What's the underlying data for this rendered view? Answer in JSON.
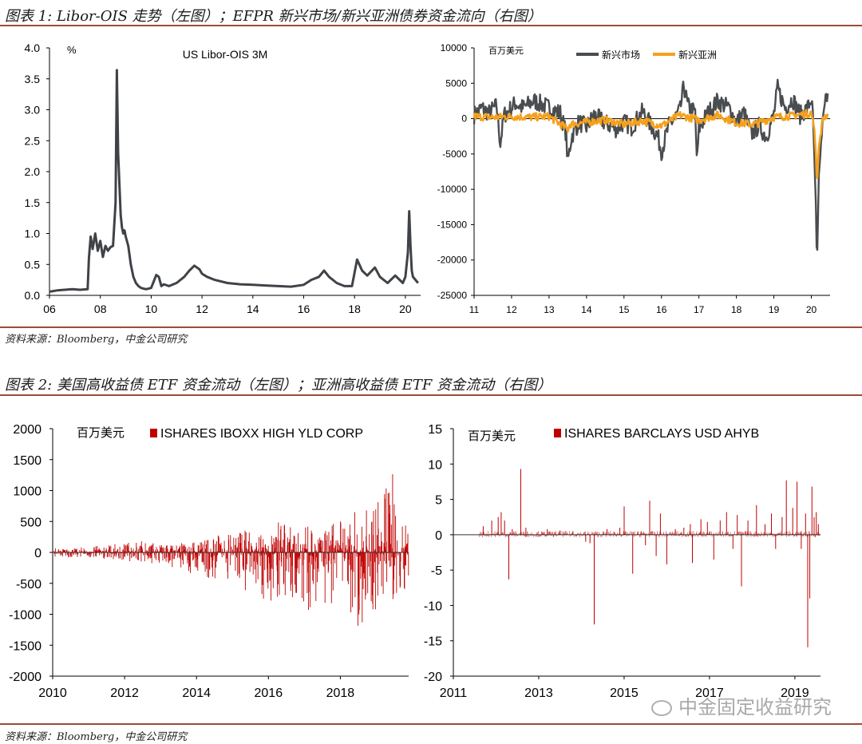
{
  "figure1": {
    "title": "图表 1: Libor-OIS 走势（左图）；EFPR 新兴市场/新兴亚洲债券资金流向（右图）",
    "source": "资料来源：Bloomberg，中金公司研究"
  },
  "figure2": {
    "title": "图表 2: 美国高收益债 ETF 资金流动（左图）；亚洲高收益债 ETF 资金流动（右图）",
    "source": "资料来源：Bloomberg，中金公司研究"
  },
  "watermark": "中金固定收益研究",
  "colors": {
    "rule": "#9b4a3a",
    "libor": "#3f4347",
    "em": "#4a4d50",
    "asia": "#f5a11d",
    "etf": "#c00000"
  },
  "chart_data": [
    {
      "id": "libor",
      "type": "line",
      "title": "US Libor-OIS 3M",
      "ylabel": "%",
      "ylim": [
        0,
        4
      ],
      "yticks": [
        "0.0",
        "0.5",
        "1.0",
        "1.5",
        "2.0",
        "2.5",
        "3.0",
        "3.5",
        "4.0"
      ],
      "xlim": [
        2006,
        2020.6
      ],
      "xticks": [
        {
          "v": 2006,
          "l": "06"
        },
        {
          "v": 2008,
          "l": "08"
        },
        {
          "v": 2010,
          "l": "10"
        },
        {
          "v": 2012,
          "l": "12"
        },
        {
          "v": 2014,
          "l": "14"
        },
        {
          "v": 2016,
          "l": "16"
        },
        {
          "v": 2018,
          "l": "18"
        },
        {
          "v": 2020,
          "l": "20"
        }
      ],
      "series": [
        {
          "x": [
            2006,
            2006.3,
            2006.6,
            2006.9,
            2007.2,
            2007.5,
            2007.55,
            2007.62,
            2007.7,
            2007.8,
            2007.9,
            2008.0,
            2008.1,
            2008.2,
            2008.3,
            2008.4,
            2008.5,
            2008.6,
            2008.65,
            2008.7,
            2008.75,
            2008.8,
            2008.85,
            2008.9,
            2008.95,
            2009.0,
            2009.1,
            2009.2,
            2009.3,
            2009.4,
            2009.5,
            2009.6,
            2009.8,
            2010.0,
            2010.2,
            2010.3,
            2010.4,
            2010.5,
            2010.7,
            2011.0,
            2011.3,
            2011.5,
            2011.7,
            2011.9,
            2012.0,
            2012.2,
            2012.5,
            2013.0,
            2013.5,
            2014.0,
            2014.5,
            2015.0,
            2015.5,
            2016.0,
            2016.3,
            2016.6,
            2016.8,
            2017.0,
            2017.3,
            2017.6,
            2017.9,
            2018.1,
            2018.3,
            2018.5,
            2018.8,
            2019.0,
            2019.3,
            2019.6,
            2019.9,
            2020.0,
            2020.1,
            2020.15,
            2020.2,
            2020.25,
            2020.3,
            2020.4,
            2020.5
          ],
          "y": [
            0.06,
            0.08,
            0.09,
            0.1,
            0.09,
            0.1,
            0.6,
            0.95,
            0.75,
            1.0,
            0.72,
            0.88,
            0.62,
            0.8,
            0.72,
            0.78,
            0.8,
            1.5,
            3.64,
            2.3,
            1.8,
            1.3,
            1.1,
            1.0,
            1.05,
            0.95,
            0.8,
            0.5,
            0.3,
            0.2,
            0.15,
            0.12,
            0.1,
            0.12,
            0.33,
            0.3,
            0.15,
            0.18,
            0.15,
            0.2,
            0.3,
            0.4,
            0.48,
            0.42,
            0.35,
            0.3,
            0.25,
            0.2,
            0.18,
            0.17,
            0.16,
            0.15,
            0.14,
            0.17,
            0.25,
            0.3,
            0.4,
            0.3,
            0.2,
            0.15,
            0.15,
            0.58,
            0.4,
            0.32,
            0.45,
            0.3,
            0.2,
            0.32,
            0.2,
            0.3,
            0.7,
            1.36,
            0.8,
            0.4,
            0.3,
            0.25,
            0.2
          ]
        }
      ]
    },
    {
      "id": "epfr",
      "type": "line",
      "ylabel": "百万美元",
      "ylim": [
        -25000,
        10000
      ],
      "yticks": [
        -25000,
        -20000,
        -15000,
        -10000,
        -5000,
        0,
        5000,
        10000
      ],
      "xlim": [
        2011,
        2020.5
      ],
      "xticks": [
        {
          "v": 2011,
          "l": "11"
        },
        {
          "v": 2012,
          "l": "12"
        },
        {
          "v": 2013,
          "l": "13"
        },
        {
          "v": 2014,
          "l": "14"
        },
        {
          "v": 2015,
          "l": "15"
        },
        {
          "v": 2016,
          "l": "16"
        },
        {
          "v": 2017,
          "l": "17"
        },
        {
          "v": 2018,
          "l": "18"
        },
        {
          "v": 2019,
          "l": "19"
        },
        {
          "v": 2020,
          "l": "20"
        }
      ],
      "legend": "top",
      "series": [
        {
          "name": "新兴市场",
          "color": "#4a4d50",
          "x": [
            2011,
            2011.2,
            2011.4,
            2011.6,
            2011.7,
            2011.8,
            2012.0,
            2012.1,
            2012.3,
            2012.6,
            2012.9,
            2013.1,
            2013.3,
            2013.45,
            2013.5,
            2013.6,
            2013.8,
            2014.0,
            2014.2,
            2014.5,
            2014.8,
            2015.0,
            2015.2,
            2015.5,
            2015.7,
            2015.9,
            2016.0,
            2016.2,
            2016.5,
            2016.6,
            2016.7,
            2016.9,
            2016.95,
            2017.0,
            2017.2,
            2017.5,
            2017.8,
            2018.0,
            2018.2,
            2018.4,
            2018.6,
            2018.8,
            2019.0,
            2019.1,
            2019.3,
            2019.5,
            2019.7,
            2019.9,
            2020.0,
            2020.05,
            2020.12,
            2020.15,
            2020.2,
            2020.3,
            2020.4
          ],
          "y": [
            500,
            1500,
            800,
            1800,
            -3500,
            500,
            1500,
            2200,
            1500,
            2500,
            1800,
            1200,
            800,
            -2000,
            -6200,
            -2500,
            -500,
            -1200,
            500,
            -600,
            -1500,
            -500,
            -1200,
            1000,
            -800,
            -2500,
            -4600,
            -1000,
            1200,
            4700,
            1800,
            800,
            -6500,
            -1500,
            500,
            2500,
            1500,
            -500,
            800,
            -2200,
            -1000,
            -2600,
            600,
            4300,
            1500,
            2800,
            500,
            1500,
            2800,
            -500,
            -12000,
            -21200,
            -8000,
            -1000,
            3000
          ]
        },
        {
          "name": "新兴亚洲",
          "color": "#f5a11d",
          "x": [
            2011,
            2011.5,
            2012.0,
            2012.5,
            2013.0,
            2013.5,
            2013.55,
            2014.0,
            2014.5,
            2015.0,
            2015.5,
            2016.0,
            2016.5,
            2017.0,
            2017.5,
            2018.0,
            2018.5,
            2019.0,
            2019.5,
            2020.0,
            2020.08,
            2020.12,
            2020.15,
            2020.2,
            2020.3,
            2020.4
          ],
          "y": [
            300,
            200,
            300,
            200,
            300,
            -1500,
            -800,
            -500,
            -200,
            -800,
            -300,
            -1000,
            500,
            -200,
            500,
            -600,
            -800,
            200,
            400,
            800,
            -1500,
            -5000,
            -9500,
            -4000,
            -200,
            500
          ]
        }
      ]
    },
    {
      "id": "us_hy_etf",
      "type": "bar",
      "ylabel": "百万美元",
      "ylim": [
        -2000,
        2000
      ],
      "yticks": [
        -2000,
        -1500,
        -1000,
        -500,
        0,
        500,
        1000,
        1500,
        2000
      ],
      "xlim": [
        2010,
        2019.9
      ],
      "xticks": [
        2010,
        2012,
        2014,
        2016,
        2018
      ],
      "series": [
        {
          "name": "ISHARES IBOXX HIGH YLD CORP",
          "color": "#c00000",
          "envelope": {
            "x": [
              2010,
              2011,
              2012,
              2012.5,
              2013,
              2014,
              2014.5,
              2015,
              2015.5,
              2016,
              2016.5,
              2017,
              2017.5,
              2018,
              2018.5,
              2019,
              2019.4,
              2019.6,
              2019.9
            ],
            "pos": [
              70,
              90,
              150,
              200,
              120,
              180,
              280,
              320,
              400,
              480,
              500,
              460,
              420,
              520,
              700,
              760,
              1500,
              900,
              520
            ],
            "neg": [
              -70,
              -90,
              -130,
              -200,
              -180,
              -420,
              -540,
              -560,
              -640,
              -800,
              -700,
              -960,
              -900,
              -1000,
              -1200,
              -1000,
              -940,
              -860,
              -500
            ]
          }
        }
      ]
    },
    {
      "id": "asia_hy_etf",
      "type": "bar",
      "ylabel": "百万美元",
      "ylim": [
        -20,
        15
      ],
      "yticks": [
        -20,
        -15,
        -10,
        -5,
        0,
        5,
        10,
        15
      ],
      "xlim": [
        2011,
        2019.6
      ],
      "xticks": [
        2011,
        2013,
        2015,
        2017,
        2019
      ],
      "series": [
        {
          "name": "ISHARES BARCLAYS USD AHYB",
          "color": "#c00000",
          "spikes": [
            {
              "x": 2011.7,
              "v": 1.2
            },
            {
              "x": 2011.9,
              "v": 2.0
            },
            {
              "x": 2012.05,
              "v": 2.5
            },
            {
              "x": 2012.12,
              "v": 3.2
            },
            {
              "x": 2012.2,
              "v": 2.0
            },
            {
              "x": 2012.3,
              "v": -6.3
            },
            {
              "x": 2012.38,
              "v": 0.8
            },
            {
              "x": 2012.58,
              "v": 9.3
            },
            {
              "x": 2012.7,
              "v": 1.0
            },
            {
              "x": 2013.2,
              "v": 0.8
            },
            {
              "x": 2013.5,
              "v": 0.6
            },
            {
              "x": 2013.8,
              "v": 0.5
            },
            {
              "x": 2014.1,
              "v": -1.0
            },
            {
              "x": 2014.2,
              "v": -1.2
            },
            {
              "x": 2014.3,
              "v": -12.7
            },
            {
              "x": 2014.6,
              "v": 0.8
            },
            {
              "x": 2014.9,
              "v": 1.0
            },
            {
              "x": 2015.0,
              "v": 4.0
            },
            {
              "x": 2015.2,
              "v": -5.5
            },
            {
              "x": 2015.4,
              "v": 0.5
            },
            {
              "x": 2015.5,
              "v": -1.5
            },
            {
              "x": 2015.6,
              "v": 4.8
            },
            {
              "x": 2015.75,
              "v": -3.0
            },
            {
              "x": 2015.85,
              "v": 3.0
            },
            {
              "x": 2016.0,
              "v": -4.2
            },
            {
              "x": 2016.2,
              "v": 0.8
            },
            {
              "x": 2016.4,
              "v": 1.0
            },
            {
              "x": 2016.55,
              "v": 1.5
            },
            {
              "x": 2016.6,
              "v": -4.0
            },
            {
              "x": 2016.8,
              "v": 2.2
            },
            {
              "x": 2016.95,
              "v": 1.8
            },
            {
              "x": 2017.1,
              "v": -3.5
            },
            {
              "x": 2017.25,
              "v": 2.0
            },
            {
              "x": 2017.4,
              "v": 3.2
            },
            {
              "x": 2017.55,
              "v": -2.0
            },
            {
              "x": 2017.65,
              "v": 2.8
            },
            {
              "x": 2017.75,
              "v": -7.3
            },
            {
              "x": 2017.9,
              "v": 2.0
            },
            {
              "x": 2018.1,
              "v": 4.2
            },
            {
              "x": 2018.3,
              "v": 1.5
            },
            {
              "x": 2018.45,
              "v": 3.0
            },
            {
              "x": 2018.55,
              "v": -2.0
            },
            {
              "x": 2018.7,
              "v": 2.5
            },
            {
              "x": 2018.8,
              "v": 7.7
            },
            {
              "x": 2018.95,
              "v": 3.8
            },
            {
              "x": 2019.05,
              "v": 7.5
            },
            {
              "x": 2019.15,
              "v": -2.0
            },
            {
              "x": 2019.25,
              "v": 3.0
            },
            {
              "x": 2019.3,
              "v": -15.9
            },
            {
              "x": 2019.35,
              "v": -9.0
            },
            {
              "x": 2019.4,
              "v": 6.8
            },
            {
              "x": 2019.45,
              "v": 2.5
            },
            {
              "x": 2019.5,
              "v": 3.2
            },
            {
              "x": 2019.55,
              "v": 1.5
            }
          ]
        }
      ]
    }
  ]
}
